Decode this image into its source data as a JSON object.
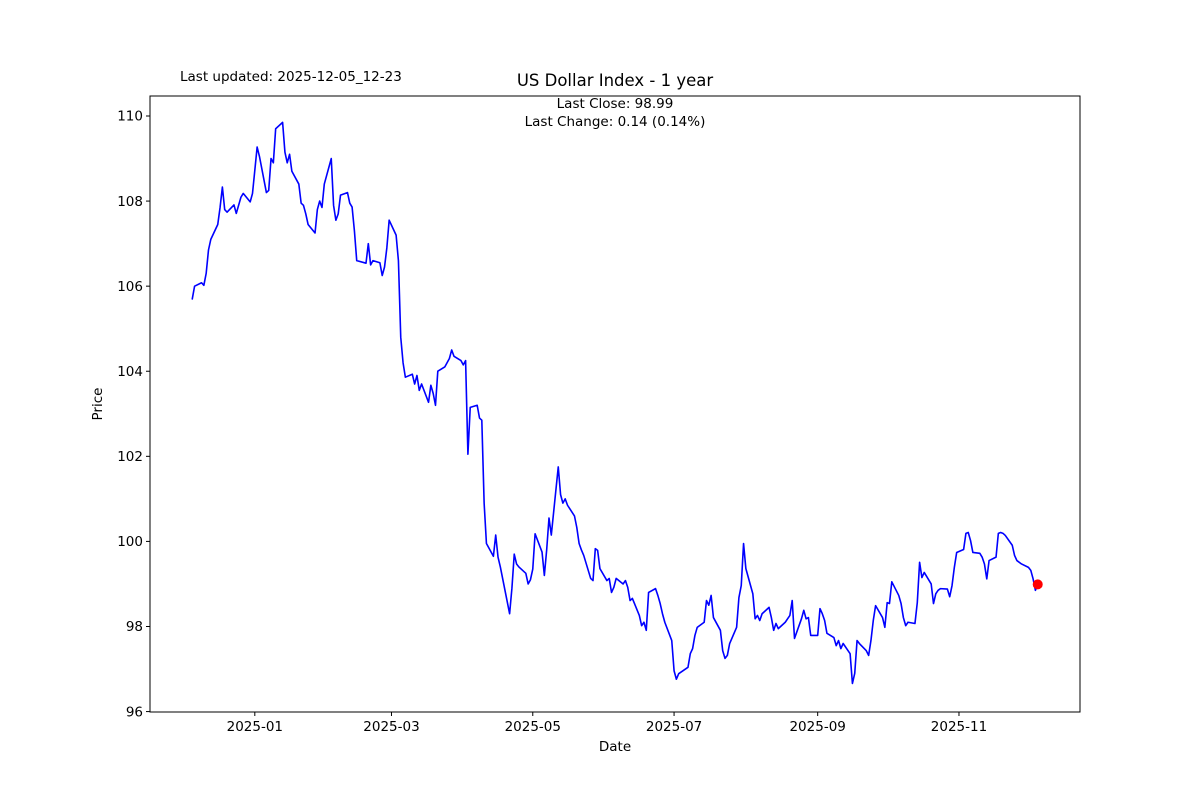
{
  "header": {
    "last_updated": "Last updated: 2025-12-05_12-23",
    "title": "US Dollar Index - 1 year",
    "subtitle_line1": "Last Close: 98.99",
    "subtitle_line2": "Last Change: 0.14 (0.14%)"
  },
  "axes": {
    "x_label": "Date",
    "y_label": "Price",
    "x_ticks": [
      {
        "label": "2025-01",
        "date": "2025-01-01"
      },
      {
        "label": "2025-03",
        "date": "2025-03-01"
      },
      {
        "label": "2025-05",
        "date": "2025-05-01"
      },
      {
        "label": "2025-07",
        "date": "2025-07-01"
      },
      {
        "label": "2025-09",
        "date": "2025-09-01"
      },
      {
        "label": "2025-11",
        "date": "2025-11-01"
      }
    ],
    "y_ticks": [
      96,
      98,
      100,
      102,
      104,
      106,
      108,
      110
    ]
  },
  "chart_data": {
    "type": "line",
    "title": "US Dollar Index - 1 year",
    "xlabel": "Date",
    "ylabel": "Price",
    "grid": false,
    "legend": "none",
    "line_color": "#0000ff",
    "line_width": 1.6,
    "last_point_marker": {
      "shape": "circle",
      "color": "#ff0000",
      "radius": 5
    },
    "last_close": 98.99,
    "last_change": "0.14 (0.14%)",
    "x_start_date": "2024-12-05",
    "x_margin_days": 18.25,
    "ylim": [
      95.99,
      110.47
    ],
    "series": [
      {
        "name": "US Dollar Index",
        "points": [
          [
            "2024-12-05",
            105.7
          ],
          [
            "2024-12-06",
            106.0
          ],
          [
            "2024-12-09",
            106.08
          ],
          [
            "2024-12-10",
            106.02
          ],
          [
            "2024-12-11",
            106.3
          ],
          [
            "2024-12-12",
            106.85
          ],
          [
            "2024-12-13",
            107.1
          ],
          [
            "2024-12-16",
            107.45
          ],
          [
            "2024-12-17",
            107.85
          ],
          [
            "2024-12-18",
            108.33
          ],
          [
            "2024-12-19",
            107.8
          ],
          [
            "2024-12-20",
            107.74
          ],
          [
            "2024-12-23",
            107.91
          ],
          [
            "2024-12-24",
            107.71
          ],
          [
            "2024-12-26",
            108.09
          ],
          [
            "2024-12-27",
            108.18
          ],
          [
            "2024-12-30",
            107.98
          ],
          [
            "2024-12-31",
            108.18
          ],
          [
            "2025-01-02",
            109.27
          ],
          [
            "2025-01-03",
            109.05
          ],
          [
            "2025-01-06",
            108.2
          ],
          [
            "2025-01-07",
            108.25
          ],
          [
            "2025-01-08",
            109.0
          ],
          [
            "2025-01-09",
            108.9
          ],
          [
            "2025-01-10",
            109.7
          ],
          [
            "2025-01-13",
            109.85
          ],
          [
            "2025-01-14",
            109.15
          ],
          [
            "2025-01-15",
            108.9
          ],
          [
            "2025-01-16",
            109.1
          ],
          [
            "2025-01-17",
            108.7
          ],
          [
            "2025-01-20",
            108.4
          ],
          [
            "2025-01-21",
            107.95
          ],
          [
            "2025-01-22",
            107.9
          ],
          [
            "2025-01-23",
            107.7
          ],
          [
            "2025-01-24",
            107.45
          ],
          [
            "2025-01-27",
            107.25
          ],
          [
            "2025-01-28",
            107.8
          ],
          [
            "2025-01-29",
            108.0
          ],
          [
            "2025-01-30",
            107.85
          ],
          [
            "2025-01-31",
            108.4
          ],
          [
            "2025-02-03",
            109.0
          ],
          [
            "2025-02-04",
            107.9
          ],
          [
            "2025-02-05",
            107.55
          ],
          [
            "2025-02-06",
            107.7
          ],
          [
            "2025-02-07",
            108.14
          ],
          [
            "2025-02-10",
            108.2
          ],
          [
            "2025-02-11",
            107.95
          ],
          [
            "2025-02-12",
            107.86
          ],
          [
            "2025-02-13",
            107.3
          ],
          [
            "2025-02-14",
            106.6
          ],
          [
            "2025-02-18",
            106.54
          ],
          [
            "2025-02-19",
            107.0
          ],
          [
            "2025-02-20",
            106.5
          ],
          [
            "2025-02-21",
            106.6
          ],
          [
            "2025-02-24",
            106.55
          ],
          [
            "2025-02-25",
            106.25
          ],
          [
            "2025-02-26",
            106.45
          ],
          [
            "2025-02-27",
            106.9
          ],
          [
            "2025-02-28",
            107.55
          ],
          [
            "2025-03-03",
            107.2
          ],
          [
            "2025-03-04",
            106.6
          ],
          [
            "2025-03-05",
            104.8
          ],
          [
            "2025-03-06",
            104.2
          ],
          [
            "2025-03-07",
            103.86
          ],
          [
            "2025-03-10",
            103.93
          ],
          [
            "2025-03-11",
            103.7
          ],
          [
            "2025-03-12",
            103.9
          ],
          [
            "2025-03-13",
            103.55
          ],
          [
            "2025-03-14",
            103.7
          ],
          [
            "2025-03-17",
            103.27
          ],
          [
            "2025-03-18",
            103.67
          ],
          [
            "2025-03-19",
            103.48
          ],
          [
            "2025-03-20",
            103.2
          ],
          [
            "2025-03-21",
            104.0
          ],
          [
            "2025-03-24",
            104.1
          ],
          [
            "2025-03-25",
            104.2
          ],
          [
            "2025-03-26",
            104.3
          ],
          [
            "2025-03-27",
            104.5
          ],
          [
            "2025-03-28",
            104.35
          ],
          [
            "2025-03-31",
            104.25
          ],
          [
            "2025-04-01",
            104.15
          ],
          [
            "2025-04-02",
            104.25
          ],
          [
            "2025-04-03",
            102.05
          ],
          [
            "2025-04-04",
            103.15
          ],
          [
            "2025-04-07",
            103.2
          ],
          [
            "2025-04-08",
            102.9
          ],
          [
            "2025-04-09",
            102.85
          ],
          [
            "2025-04-10",
            100.9
          ],
          [
            "2025-04-11",
            99.95
          ],
          [
            "2025-04-14",
            99.65
          ],
          [
            "2025-04-15",
            100.15
          ],
          [
            "2025-04-16",
            99.63
          ],
          [
            "2025-04-17",
            99.4
          ],
          [
            "2025-04-21",
            98.3
          ],
          [
            "2025-04-22",
            98.9
          ],
          [
            "2025-04-23",
            99.7
          ],
          [
            "2025-04-24",
            99.47
          ],
          [
            "2025-04-25",
            99.4
          ],
          [
            "2025-04-28",
            99.25
          ],
          [
            "2025-04-29",
            99.0
          ],
          [
            "2025-04-30",
            99.1
          ],
          [
            "2025-05-01",
            99.35
          ],
          [
            "2025-05-02",
            100.18
          ],
          [
            "2025-05-05",
            99.75
          ],
          [
            "2025-05-06",
            99.2
          ],
          [
            "2025-05-07",
            99.8
          ],
          [
            "2025-05-08",
            100.55
          ],
          [
            "2025-05-09",
            100.15
          ],
          [
            "2025-05-12",
            101.75
          ],
          [
            "2025-05-13",
            101.1
          ],
          [
            "2025-05-14",
            100.9
          ],
          [
            "2025-05-15",
            101.0
          ],
          [
            "2025-05-16",
            100.85
          ],
          [
            "2025-05-19",
            100.6
          ],
          [
            "2025-05-20",
            100.33
          ],
          [
            "2025-05-21",
            99.95
          ],
          [
            "2025-05-22",
            99.8
          ],
          [
            "2025-05-23",
            99.67
          ],
          [
            "2025-05-26",
            99.13
          ],
          [
            "2025-05-27",
            99.08
          ],
          [
            "2025-05-28",
            99.83
          ],
          [
            "2025-05-29",
            99.79
          ],
          [
            "2025-05-30",
            99.36
          ],
          [
            "2025-06-02",
            99.08
          ],
          [
            "2025-06-03",
            99.13
          ],
          [
            "2025-06-04",
            98.8
          ],
          [
            "2025-06-05",
            98.92
          ],
          [
            "2025-06-06",
            99.13
          ],
          [
            "2025-06-09",
            99.0
          ],
          [
            "2025-06-10",
            99.08
          ],
          [
            "2025-06-11",
            98.92
          ],
          [
            "2025-06-12",
            98.61
          ],
          [
            "2025-06-13",
            98.66
          ],
          [
            "2025-06-16",
            98.26
          ],
          [
            "2025-06-17",
            98.02
          ],
          [
            "2025-06-18",
            98.1
          ],
          [
            "2025-06-19",
            97.91
          ],
          [
            "2025-06-20",
            98.8
          ],
          [
            "2025-06-23",
            98.89
          ],
          [
            "2025-06-24",
            98.73
          ],
          [
            "2025-06-25",
            98.54
          ],
          [
            "2025-06-26",
            98.3
          ],
          [
            "2025-06-27",
            98.1
          ],
          [
            "2025-06-30",
            97.67
          ],
          [
            "2025-07-01",
            96.96
          ],
          [
            "2025-07-02",
            96.76
          ],
          [
            "2025-07-03",
            96.89
          ],
          [
            "2025-07-07",
            97.04
          ],
          [
            "2025-07-08",
            97.36
          ],
          [
            "2025-07-09",
            97.48
          ],
          [
            "2025-07-10",
            97.79
          ],
          [
            "2025-07-11",
            97.98
          ],
          [
            "2025-07-14",
            98.1
          ],
          [
            "2025-07-15",
            98.61
          ],
          [
            "2025-07-16",
            98.5
          ],
          [
            "2025-07-17",
            98.73
          ],
          [
            "2025-07-18",
            98.21
          ],
          [
            "2025-07-21",
            97.91
          ],
          [
            "2025-07-22",
            97.43
          ],
          [
            "2025-07-23",
            97.25
          ],
          [
            "2025-07-24",
            97.32
          ],
          [
            "2025-07-25",
            97.6
          ],
          [
            "2025-07-28",
            97.98
          ],
          [
            "2025-07-29",
            98.68
          ],
          [
            "2025-07-30",
            98.96
          ],
          [
            "2025-07-31",
            99.95
          ],
          [
            "2025-08-01",
            99.36
          ],
          [
            "2025-08-04",
            98.77
          ],
          [
            "2025-08-05",
            98.18
          ],
          [
            "2025-08-06",
            98.26
          ],
          [
            "2025-08-07",
            98.14
          ],
          [
            "2025-08-08",
            98.3
          ],
          [
            "2025-08-11",
            98.45
          ],
          [
            "2025-08-12",
            98.21
          ],
          [
            "2025-08-13",
            97.91
          ],
          [
            "2025-08-14",
            98.07
          ],
          [
            "2025-08-15",
            97.95
          ],
          [
            "2025-08-18",
            98.1
          ],
          [
            "2025-08-19",
            98.18
          ],
          [
            "2025-08-20",
            98.26
          ],
          [
            "2025-08-21",
            98.61
          ],
          [
            "2025-08-22",
            97.72
          ],
          [
            "2025-08-25",
            98.18
          ],
          [
            "2025-08-26",
            98.38
          ],
          [
            "2025-08-27",
            98.18
          ],
          [
            "2025-08-28",
            98.21
          ],
          [
            "2025-08-29",
            97.79
          ],
          [
            "2025-09-01",
            97.79
          ],
          [
            "2025-09-02",
            98.42
          ],
          [
            "2025-09-03",
            98.3
          ],
          [
            "2025-09-04",
            98.14
          ],
          [
            "2025-09-05",
            97.84
          ],
          [
            "2025-09-08",
            97.74
          ],
          [
            "2025-09-09",
            97.55
          ],
          [
            "2025-09-10",
            97.67
          ],
          [
            "2025-09-11",
            97.48
          ],
          [
            "2025-09-12",
            97.6
          ],
          [
            "2025-09-15",
            97.36
          ],
          [
            "2025-09-16",
            96.66
          ],
          [
            "2025-09-17",
            96.9
          ],
          [
            "2025-09-18",
            97.67
          ],
          [
            "2025-09-19",
            97.6
          ],
          [
            "2025-09-22",
            97.43
          ],
          [
            "2025-09-23",
            97.32
          ],
          [
            "2025-09-24",
            97.67
          ],
          [
            "2025-09-25",
            98.14
          ],
          [
            "2025-09-26",
            98.49
          ],
          [
            "2025-09-29",
            98.21
          ],
          [
            "2025-09-30",
            97.98
          ],
          [
            "2025-10-01",
            98.56
          ],
          [
            "2025-10-02",
            98.54
          ],
          [
            "2025-10-03",
            99.05
          ],
          [
            "2025-10-06",
            98.73
          ],
          [
            "2025-10-07",
            98.54
          ],
          [
            "2025-10-08",
            98.21
          ],
          [
            "2025-10-09",
            98.02
          ],
          [
            "2025-10-10",
            98.1
          ],
          [
            "2025-10-13",
            98.07
          ],
          [
            "2025-10-14",
            98.56
          ],
          [
            "2025-10-15",
            99.51
          ],
          [
            "2025-10-16",
            99.15
          ],
          [
            "2025-10-17",
            99.27
          ],
          [
            "2025-10-20",
            99.0
          ],
          [
            "2025-10-21",
            98.54
          ],
          [
            "2025-10-22",
            98.77
          ],
          [
            "2025-10-23",
            98.85
          ],
          [
            "2025-10-24",
            98.89
          ],
          [
            "2025-10-27",
            98.88
          ],
          [
            "2025-10-28",
            98.7
          ],
          [
            "2025-10-29",
            98.96
          ],
          [
            "2025-10-30",
            99.39
          ],
          [
            "2025-10-31",
            99.74
          ],
          [
            "2025-11-03",
            99.81
          ],
          [
            "2025-11-04",
            100.19
          ],
          [
            "2025-11-05",
            100.21
          ],
          [
            "2025-11-06",
            100.02
          ],
          [
            "2025-11-07",
            99.74
          ],
          [
            "2025-11-10",
            99.72
          ],
          [
            "2025-11-11",
            99.63
          ],
          [
            "2025-11-12",
            99.47
          ],
          [
            "2025-11-13",
            99.12
          ],
          [
            "2025-11-14",
            99.55
          ],
          [
            "2025-11-17",
            99.63
          ],
          [
            "2025-11-18",
            100.19
          ],
          [
            "2025-11-19",
            100.21
          ],
          [
            "2025-11-20",
            100.19
          ],
          [
            "2025-11-21",
            100.14
          ],
          [
            "2025-11-24",
            99.91
          ],
          [
            "2025-11-25",
            99.67
          ],
          [
            "2025-11-26",
            99.55
          ],
          [
            "2025-11-28",
            99.47
          ],
          [
            "2025-12-01",
            99.39
          ],
          [
            "2025-12-02",
            99.32
          ],
          [
            "2025-12-03",
            99.12
          ],
          [
            "2025-12-04",
            98.85
          ],
          [
            "2025-12-05",
            98.99
          ]
        ]
      }
    ]
  }
}
